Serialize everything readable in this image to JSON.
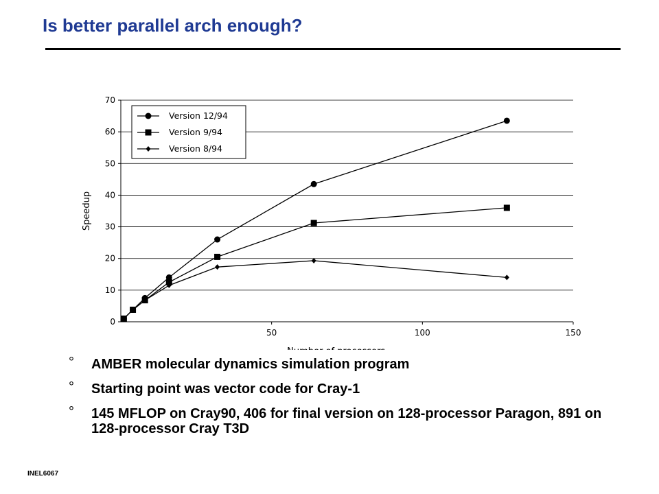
{
  "slide": {
    "title": "Is better parallel arch enough?",
    "footer": "INEL6067",
    "bullet_marker": "°",
    "bullets": [
      "AMBER molecular dynamics simulation program",
      "Starting point was vector code for Cray-1",
      "145 MFLOP on Cray90, 406 for final version on 128-processor Paragon, 891 on 128-processor Cray T3D"
    ],
    "colors": {
      "title": "#1f3a93",
      "text": "#000000"
    }
  },
  "chart_data": {
    "type": "line",
    "xlabel": "Number of processors",
    "ylabel": "Speedup",
    "xlim": [
      0,
      150
    ],
    "ylim": [
      0,
      70
    ],
    "xticks": [
      50,
      100,
      150
    ],
    "yticks": [
      0,
      10,
      20,
      30,
      40,
      50,
      60,
      70
    ],
    "grid": "horizontal",
    "legend_position": "top-left",
    "series": [
      {
        "name": "Version 12/94",
        "marker": "circle",
        "x": [
          1,
          4,
          8,
          16,
          32,
          64,
          128
        ],
        "y": [
          1,
          3.8,
          7.5,
          14,
          26,
          43.5,
          63.5
        ]
      },
      {
        "name": "Version 9/94",
        "marker": "square",
        "x": [
          1,
          4,
          8,
          16,
          32,
          64,
          128
        ],
        "y": [
          1,
          3.8,
          6.8,
          12.5,
          20.5,
          31.2,
          36
        ]
      },
      {
        "name": "Version 8/94",
        "marker": "diamond",
        "x": [
          1,
          4,
          8,
          16,
          32,
          64,
          128
        ],
        "y": [
          1,
          3.8,
          6.8,
          11.5,
          17.3,
          19.3,
          14
        ]
      }
    ]
  }
}
